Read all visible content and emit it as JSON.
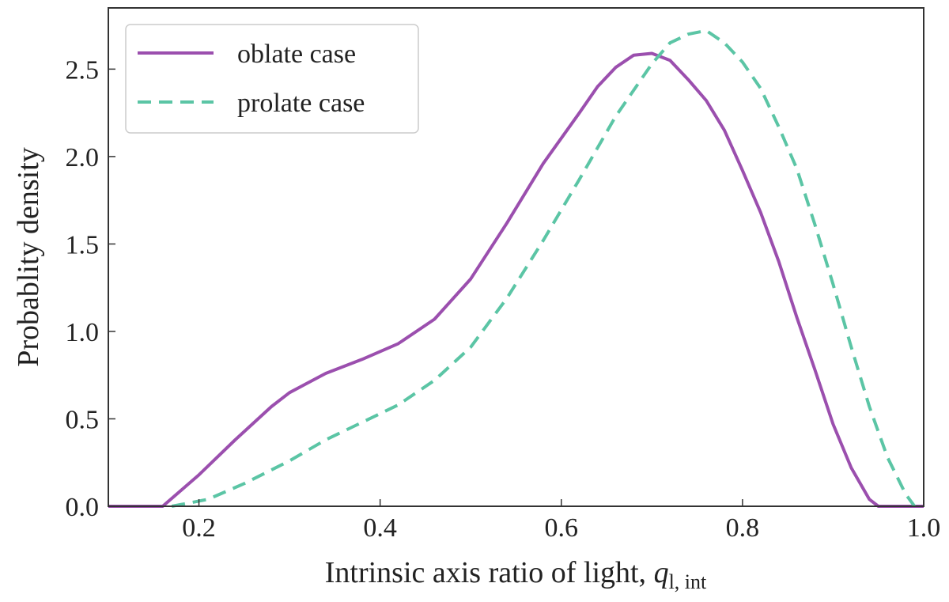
{
  "chart_data": {
    "type": "line",
    "title": "",
    "xlabel": "Intrinsic axis ratio of light, ",
    "xlabel_symbol": "q",
    "xlabel_subscript": "l, int",
    "ylabel": "Probablity density",
    "xlim": [
      0.1,
      1.0
    ],
    "ylim": [
      0.0,
      2.85
    ],
    "xticks": [
      0.2,
      0.4,
      0.6,
      0.8,
      1.0
    ],
    "xtick_labels": [
      "0.2",
      "0.4",
      "0.6",
      "0.8",
      "1.0"
    ],
    "yticks": [
      0.0,
      0.5,
      1.0,
      1.5,
      2.0,
      2.5
    ],
    "ytick_labels": [
      "0.0",
      "0.5",
      "1.0",
      "1.5",
      "2.0",
      "2.5"
    ],
    "grid": false,
    "legend_position": "top-left",
    "series": [
      {
        "name": "oblate case",
        "color": "#9b4fae",
        "style": "solid",
        "x": [
          0.1,
          0.16,
          0.2,
          0.24,
          0.28,
          0.3,
          0.34,
          0.38,
          0.42,
          0.46,
          0.5,
          0.54,
          0.58,
          0.62,
          0.64,
          0.66,
          0.68,
          0.7,
          0.72,
          0.74,
          0.76,
          0.78,
          0.8,
          0.82,
          0.84,
          0.86,
          0.88,
          0.9,
          0.92,
          0.94,
          0.95,
          0.97,
          1.0
        ],
        "y": [
          0.0,
          0.0,
          0.18,
          0.38,
          0.57,
          0.65,
          0.76,
          0.84,
          0.93,
          1.07,
          1.3,
          1.62,
          1.96,
          2.25,
          2.4,
          2.51,
          2.58,
          2.59,
          2.55,
          2.44,
          2.32,
          2.15,
          1.92,
          1.68,
          1.4,
          1.08,
          0.78,
          0.47,
          0.22,
          0.04,
          0.0,
          0.0,
          0.0
        ]
      },
      {
        "name": "prolate case",
        "color": "#5bc5a5",
        "style": "dashed",
        "x": [
          0.17,
          0.21,
          0.25,
          0.3,
          0.34,
          0.38,
          0.42,
          0.46,
          0.5,
          0.54,
          0.58,
          0.62,
          0.66,
          0.7,
          0.72,
          0.74,
          0.76,
          0.78,
          0.8,
          0.82,
          0.84,
          0.86,
          0.88,
          0.9,
          0.92,
          0.94,
          0.96,
          0.98,
          0.99
        ],
        "y": [
          0.0,
          0.04,
          0.13,
          0.26,
          0.38,
          0.48,
          0.58,
          0.72,
          0.91,
          1.19,
          1.52,
          1.87,
          2.23,
          2.53,
          2.65,
          2.7,
          2.72,
          2.65,
          2.54,
          2.39,
          2.17,
          1.93,
          1.61,
          1.27,
          0.91,
          0.57,
          0.28,
          0.07,
          0.0
        ]
      }
    ]
  }
}
